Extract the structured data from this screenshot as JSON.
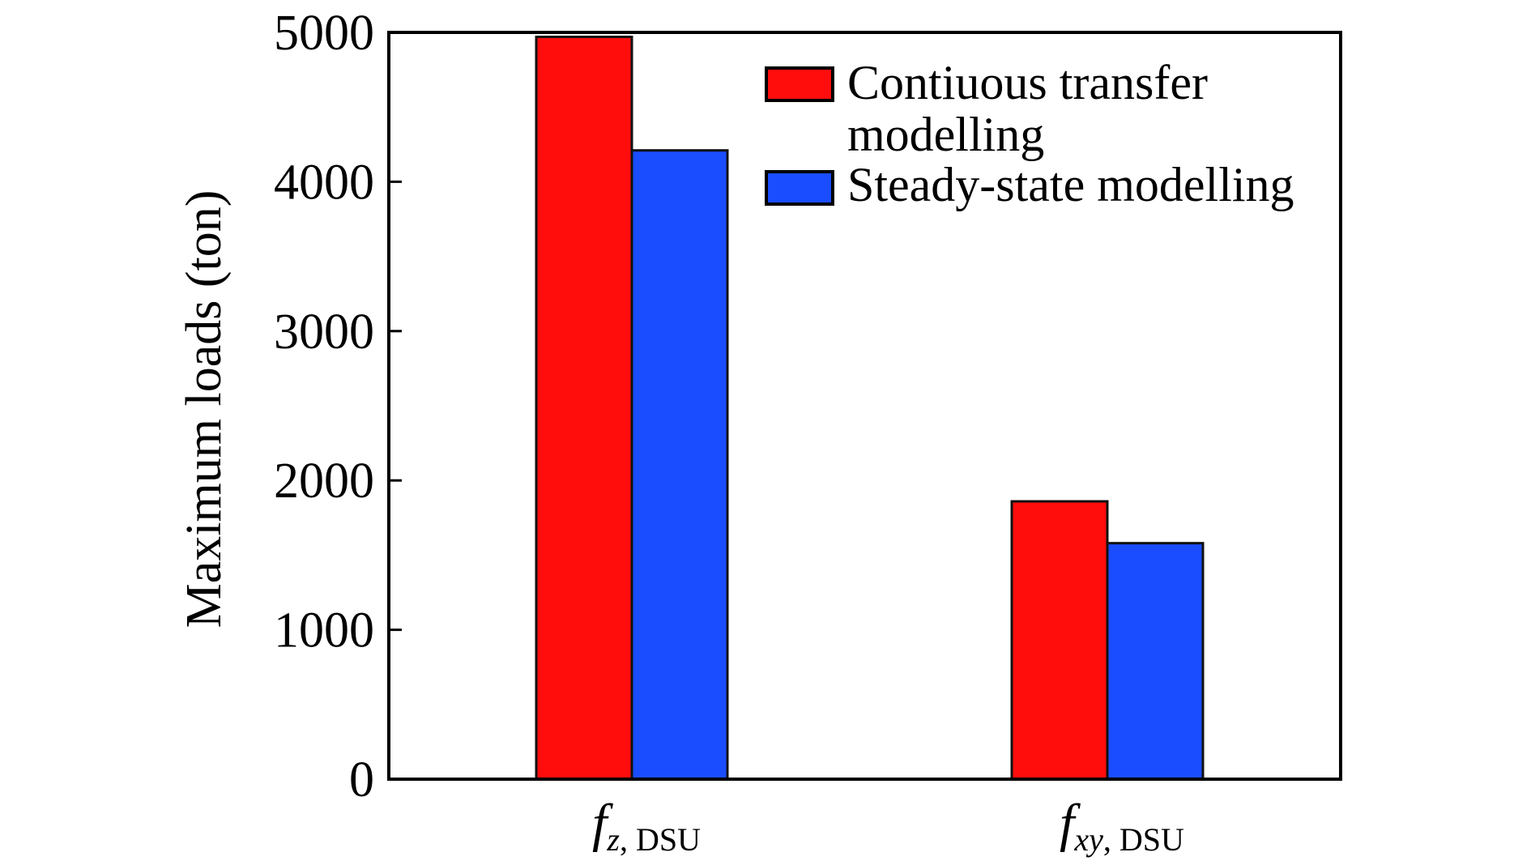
{
  "chart_data": {
    "type": "bar",
    "categories": [
      {
        "main": "f",
        "sub_italic": "z",
        "sub_rest": ", DSU"
      },
      {
        "main": "f",
        "sub_italic": "xy",
        "sub_rest": ", DSU"
      }
    ],
    "series": [
      {
        "name_lines": [
          "Contiuous transfer",
          "modelling"
        ],
        "color": "#ff0d0d",
        "values": [
          4970,
          1860
        ]
      },
      {
        "name_lines": [
          "Steady-state modelling"
        ],
        "color": "#1a4dff",
        "values": [
          4210,
          1580
        ]
      }
    ],
    "ylabel": "Maximum loads (ton)",
    "ylim": [
      0,
      5000
    ],
    "yticks": [
      0,
      1000,
      2000,
      3000,
      4000,
      5000
    ],
    "grid": false,
    "legend_position": "top-right"
  }
}
